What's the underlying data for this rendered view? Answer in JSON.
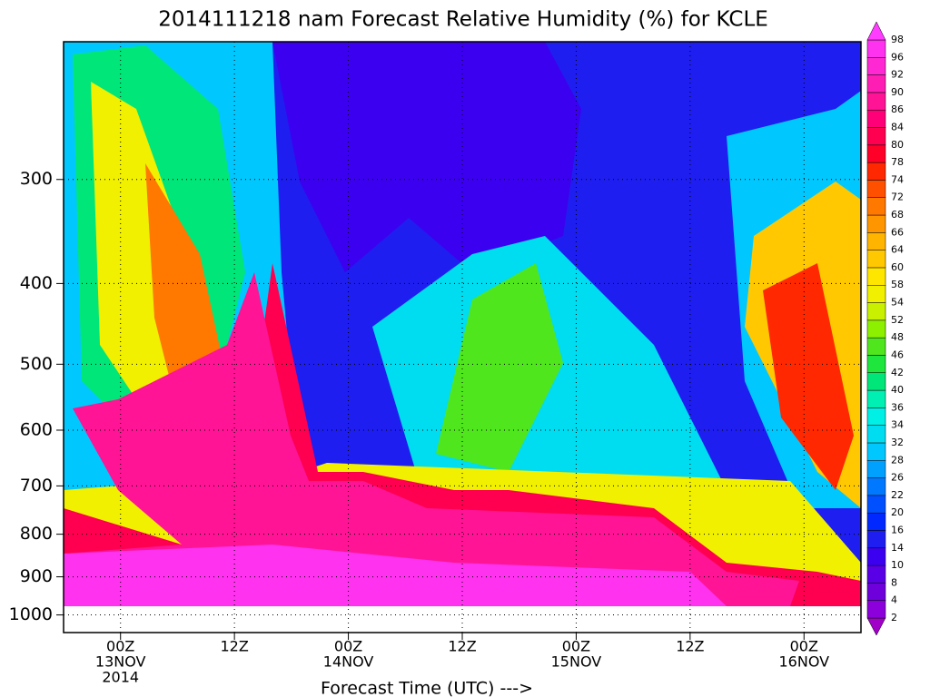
{
  "chart_data": {
    "type": "contour",
    "title": "2014111218 nam Forecast Relative Humidity (%) for KCLE",
    "x_label": "Forecast Time (UTC) --->",
    "xlim": [
      0,
      84
    ],
    "xticks": [
      {
        "value": 6,
        "label": [
          "00Z",
          "13NOV",
          "2014"
        ]
      },
      {
        "value": 18,
        "label": [
          "12Z"
        ]
      },
      {
        "value": 30,
        "label": [
          "00Z",
          "14NOV"
        ]
      },
      {
        "value": 42,
        "label": [
          "12Z"
        ]
      },
      {
        "value": 54,
        "label": [
          "00Z",
          "15NOV"
        ]
      },
      {
        "value": 66,
        "label": [
          "12Z"
        ]
      },
      {
        "value": 78,
        "label": [
          "00Z",
          "16NOV"
        ]
      }
    ],
    "ylim": [
      1050,
      205
    ],
    "y_scale": "log",
    "yticks": [
      300,
      400,
      500,
      600,
      700,
      800,
      900,
      1000
    ],
    "grid": true,
    "levels": [
      2,
      4,
      8,
      10,
      14,
      16,
      20,
      22,
      26,
      28,
      32,
      34,
      36,
      40,
      42,
      46,
      48,
      52,
      54,
      58,
      60,
      64,
      66,
      68,
      72,
      74,
      78,
      80,
      84,
      86,
      90,
      92,
      96,
      98
    ],
    "colors": [
      "#a000c8",
      "#8c00dc",
      "#6e00dc",
      "#5a00e6",
      "#3c00f0",
      "#1e1ef0",
      "#0028ff",
      "#0050ff",
      "#0078ff",
      "#00a0ff",
      "#00c8ff",
      "#00dcf0",
      "#00f0e6",
      "#00f0b4",
      "#00e678",
      "#1ee63c",
      "#50e61e",
      "#8cf000",
      "#c8f000",
      "#f0f000",
      "#ffe600",
      "#ffc800",
      "#ffb400",
      "#ff9600",
      "#ff7800",
      "#ff5000",
      "#ff2800",
      "#ff0028",
      "#ff0050",
      "#ff0078",
      "#ff1496",
      "#ff1eb4",
      "#ff28d2",
      "#ff32f0",
      "#ff3cff"
    ]
  }
}
